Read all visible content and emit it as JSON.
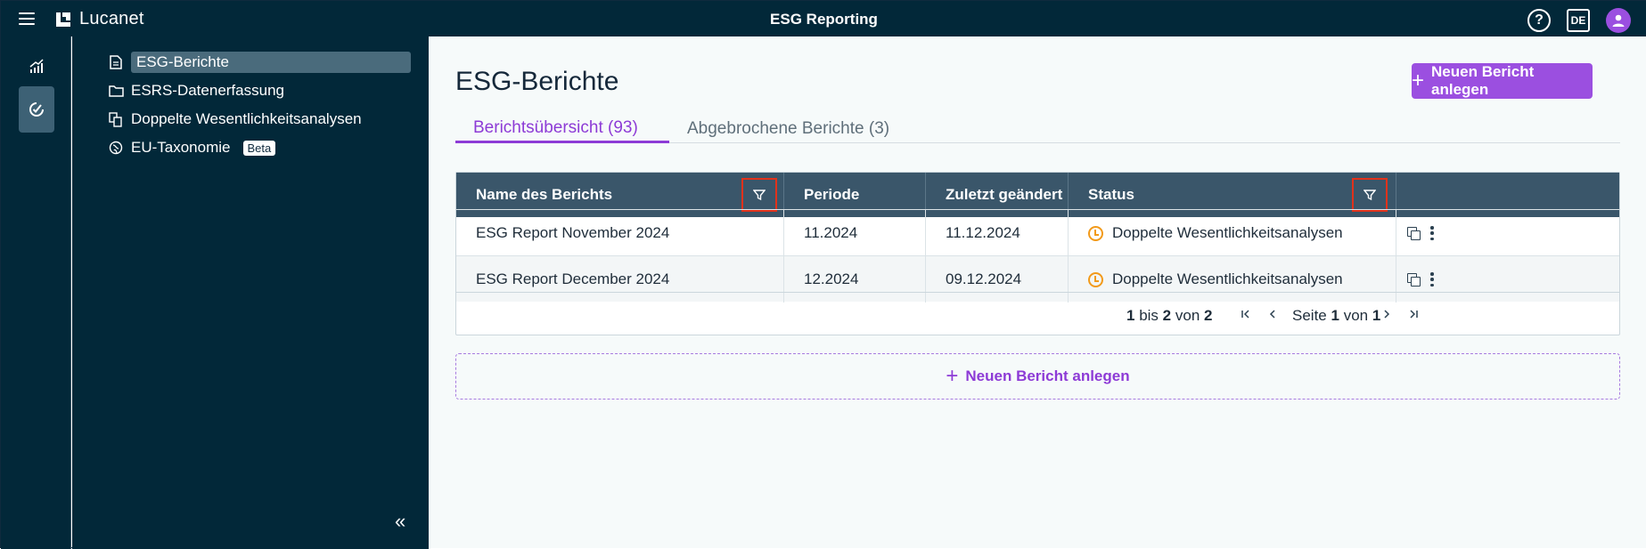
{
  "header": {
    "logo_text": "Lucanet",
    "app_title": "ESG Reporting",
    "language": "DE"
  },
  "nav": {
    "items": [
      {
        "label": "ESG-Berichte",
        "icon": "document-icon",
        "active": true
      },
      {
        "label": "ESRS-Datenerfassung",
        "icon": "folder-icon"
      },
      {
        "label": "Doppelte Wesentlichkeitsanalysen",
        "icon": "copy-document-icon"
      },
      {
        "label": "EU-Taxonomie",
        "icon": "globe-leaf-icon",
        "badge": "Beta"
      }
    ],
    "collapse_label": "«"
  },
  "main": {
    "title": "ESG-Berichte",
    "new_report_label": "Neuen Bericht anlegen",
    "tabs": [
      {
        "label": "Berichtsübersicht (93)",
        "active": true
      },
      {
        "label": "Abgebrochene Berichte (3)"
      }
    ],
    "table": {
      "columns": [
        "Name des Berichts",
        "Periode",
        "Zuletzt geändert",
        "Status"
      ],
      "rows": [
        {
          "name": "ESG Report November 2024",
          "period": "11.2024",
          "modified": "11.12.2024",
          "status": "Doppelte Wesentlichkeitsanalysen"
        },
        {
          "name": "ESG Report December 2024",
          "period": "12.2024",
          "modified": "09.12.2024",
          "status": "Doppelte Wesentlichkeitsanalysen"
        }
      ]
    },
    "pagination": {
      "from": "1",
      "range_sep": "bis",
      "to": "2",
      "of_word": "von",
      "total": "2",
      "page_word": "Seite",
      "page": "1",
      "page_of": "von",
      "pages": "1"
    },
    "add_inline_label": "Neuen Bericht anlegen"
  },
  "colors": {
    "accent": "#9b4fe0",
    "navy": "#022839",
    "table_header": "#3a566a",
    "status_pending": "#f29a1a",
    "filter_highlight": "#e0321b"
  }
}
